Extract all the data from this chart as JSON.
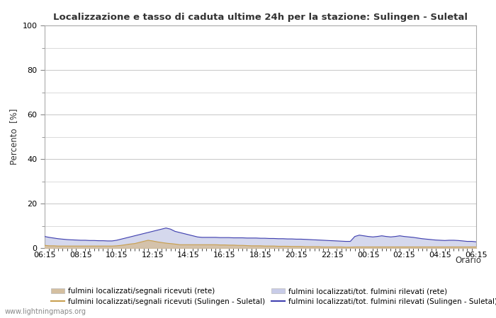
{
  "title": "Localizzazione e tasso di caduta ultime 24h per la stazione: Sulingen - Suletal",
  "ylabel": "Percento  [%]",
  "xlabel": "Orario",
  "ylim": [
    0,
    100
  ],
  "yticks": [
    0,
    20,
    40,
    60,
    80,
    100
  ],
  "yticks_minor": [
    10,
    30,
    50,
    70,
    90
  ],
  "x_labels": [
    "06:15",
    "08:15",
    "10:15",
    "12:15",
    "14:15",
    "16:15",
    "18:15",
    "20:15",
    "22:15",
    "00:15",
    "02:15",
    "04:15",
    "06:15"
  ],
  "background_color": "#ffffff",
  "plot_bg_color": "#ffffff",
  "grid_color": "#cccccc",
  "watermark": "www.lightningmaps.org",
  "fill_rete_color": "#d4bfa0",
  "fill_total_color": "#c8cce8",
  "line_rete_color": "#c8a050",
  "line_total_color": "#4040b0",
  "fill_rete_alpha": 0.85,
  "fill_total_alpha": 0.75,
  "legend_labels": [
    "fulmini localizzati/segnali ricevuti (rete)",
    "fulmini localizzati/segnali ricevuti (Sulingen - Suletal)",
    "fulmini localizzati/tot. fulmini rilevati (rete)",
    "fulmini localizzati/tot. fulmini rilevati (Sulingen - Suletal)"
  ],
  "n_points": 97,
  "rete_signal_data": [
    1.2,
    1.0,
    1.0,
    0.9,
    0.9,
    0.9,
    0.9,
    0.9,
    0.9,
    0.9,
    0.9,
    0.9,
    0.9,
    0.9,
    0.9,
    0.9,
    1.0,
    1.2,
    1.5,
    1.8,
    2.0,
    2.5,
    3.0,
    3.5,
    3.2,
    2.8,
    2.5,
    2.2,
    2.0,
    1.8,
    1.5,
    1.5,
    1.5,
    1.5,
    1.5,
    1.5,
    1.5,
    1.5,
    1.5,
    1.4,
    1.4,
    1.3,
    1.3,
    1.2,
    1.2,
    1.1,
    1.0,
    1.0,
    1.0,
    0.9,
    0.9,
    0.9,
    0.8,
    0.8,
    0.8,
    0.7,
    0.7,
    0.7,
    0.6,
    0.6,
    0.6,
    0.6,
    0.5,
    0.5,
    0.5,
    0.5,
    0.5,
    0.4,
    0.4,
    0.5,
    0.5,
    0.5,
    0.5,
    0.5,
    0.5,
    0.5,
    0.5,
    0.5,
    0.5,
    0.5,
    0.5,
    0.5,
    0.5,
    0.5,
    0.5,
    0.5,
    0.5,
    0.5,
    0.5,
    0.5,
    0.5,
    0.5,
    0.5,
    0.5,
    0.5,
    0.5,
    0.5
  ],
  "rete_total_data": [
    5.2,
    4.8,
    4.5,
    4.2,
    4.0,
    3.8,
    3.7,
    3.6,
    3.5,
    3.5,
    3.4,
    3.4,
    3.3,
    3.3,
    3.2,
    3.2,
    3.5,
    4.0,
    4.5,
    5.0,
    5.5,
    6.0,
    6.5,
    7.0,
    7.5,
    8.0,
    8.5,
    9.0,
    8.5,
    7.5,
    7.0,
    6.5,
    6.0,
    5.5,
    5.0,
    4.8,
    4.8,
    4.8,
    4.8,
    4.7,
    4.7,
    4.7,
    4.6,
    4.6,
    4.6,
    4.5,
    4.5,
    4.5,
    4.4,
    4.4,
    4.3,
    4.3,
    4.2,
    4.2,
    4.1,
    4.1,
    4.0,
    4.0,
    3.9,
    3.8,
    3.7,
    3.6,
    3.5,
    3.4,
    3.3,
    3.2,
    3.1,
    3.0,
    3.0,
    5.2,
    5.8,
    5.5,
    5.2,
    5.0,
    5.2,
    5.5,
    5.2,
    5.0,
    5.2,
    5.5,
    5.2,
    5.0,
    4.8,
    4.5,
    4.2,
    4.0,
    3.8,
    3.6,
    3.5,
    3.4,
    3.5,
    3.5,
    3.4,
    3.2,
    3.0,
    3.0,
    2.8
  ]
}
